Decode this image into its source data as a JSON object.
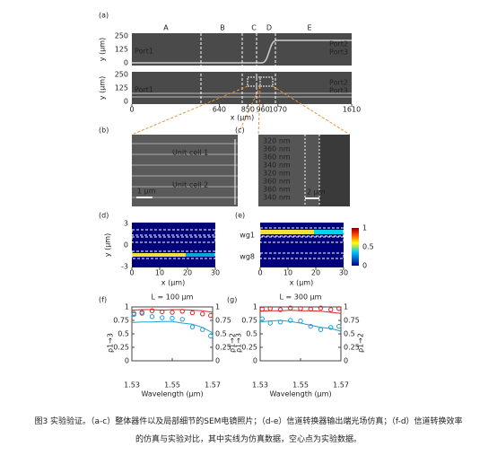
{
  "figure": {
    "a": {
      "label": "(a)",
      "sections": [
        "A",
        "B",
        "C",
        "D",
        "E"
      ],
      "yaxis_label": "y (μm)",
      "yticks": [
        250,
        125,
        0
      ],
      "ports": [
        "Port1",
        "Port2",
        "Port3"
      ],
      "xticks": [
        0,
        640,
        850,
        960,
        1070,
        1610
      ],
      "xlim": [
        0,
        1610
      ],
      "xaxis_label": "x (μm)"
    },
    "b": {
      "label": "(b)",
      "cells": [
        "Unit cell 1",
        "Unit cell 2"
      ],
      "scale": "1 μm"
    },
    "c": {
      "label": "(c)",
      "widths": [
        "320 nm",
        "360 nm",
        "360 nm",
        "340 nm",
        "320 nm",
        "360 nm",
        "360 nm",
        "340 nm"
      ],
      "scale": "2 μm"
    },
    "d": {
      "label": "(d)",
      "yaxis_label": "y (μm)",
      "yticks": [
        3,
        0,
        -3
      ],
      "xticks": [
        0,
        10,
        20,
        30
      ],
      "xlim": [
        0,
        30
      ],
      "xaxis_label": "x (μm)"
    },
    "e": {
      "label": "(e)",
      "waveguides": [
        "wg1",
        "wg8"
      ],
      "xticks": [
        0,
        10,
        20,
        30
      ],
      "xlim": [
        0,
        30
      ],
      "xaxis_label": "x (μm)",
      "colorbar_ticks": [
        1,
        0.5,
        0
      ]
    }
  },
  "chart_data": [
    {
      "type": "line",
      "panel": "(f)",
      "title": "L = 100 μm",
      "xlabel": "Wavelength (μm)",
      "ylabel": "ρ1→3",
      "y2label": "ρ1→2",
      "xlim": [
        1.53,
        1.57
      ],
      "xticks": [
        1.53,
        1.55,
        1.57
      ],
      "ylim": [
        0,
        1
      ],
      "yticks": [
        0,
        0.25,
        0.5,
        0.75,
        1
      ],
      "y2lim": [
        0,
        1
      ],
      "y2ticks": [
        0,
        0.25,
        0.5,
        0.75,
        1
      ],
      "series": [
        {
          "color": "#d62728",
          "style": "line",
          "x": [
            1.53,
            1.535,
            1.54,
            1.545,
            1.55,
            1.555,
            1.56,
            1.565,
            1.57
          ],
          "values": [
            0.94,
            0.95,
            0.95,
            0.94,
            0.95,
            0.95,
            0.94,
            0.93,
            0.9
          ]
        },
        {
          "color": "#1f9fd6",
          "style": "line",
          "axis": "y2",
          "x": [
            1.53,
            1.535,
            1.54,
            1.545,
            1.55,
            1.555,
            1.56,
            1.565,
            1.57
          ],
          "values": [
            0.71,
            0.72,
            0.72,
            0.73,
            0.73,
            0.7,
            0.68,
            0.62,
            0.52
          ]
        },
        {
          "color": "#d62728",
          "style": "marker",
          "x": [
            1.531,
            1.535,
            1.54,
            1.545,
            1.55,
            1.555,
            1.56,
            1.565,
            1.569
          ],
          "values": [
            0.88,
            0.9,
            0.93,
            0.91,
            0.9,
            0.92,
            0.89,
            0.87,
            0.84
          ]
        },
        {
          "color": "#1f9fd6",
          "style": "marker",
          "axis": "y2",
          "x": [
            1.531,
            1.535,
            1.54,
            1.545,
            1.55,
            1.555,
            1.56,
            1.565,
            1.569
          ],
          "values": [
            0.86,
            0.88,
            0.82,
            0.8,
            0.79,
            0.77,
            0.63,
            0.58,
            0.46
          ]
        }
      ]
    },
    {
      "type": "line",
      "panel": "(g)",
      "title": "L = 300 μm",
      "xlabel": "Wavelength (μm)",
      "ylabel": "ρ1→3",
      "y2label": "ρ1→2",
      "xlim": [
        1.53,
        1.57
      ],
      "xticks": [
        1.53,
        1.55,
        1.57
      ],
      "ylim": [
        0,
        1
      ],
      "yticks": [
        0,
        0.25,
        0.5,
        0.75,
        1
      ],
      "y2lim": [
        0,
        1
      ],
      "y2ticks": [
        0,
        0.25,
        0.5,
        0.75,
        1
      ],
      "series": [
        {
          "color": "#d62728",
          "style": "line",
          "x": [
            1.53,
            1.535,
            1.54,
            1.545,
            1.55,
            1.555,
            1.56,
            1.565,
            1.57
          ],
          "values": [
            0.92,
            0.93,
            0.93,
            0.94,
            0.93,
            0.93,
            0.92,
            0.9,
            0.88
          ]
        },
        {
          "color": "#1f9fd6",
          "style": "line",
          "axis": "y2",
          "x": [
            1.53,
            1.535,
            1.54,
            1.545,
            1.55,
            1.555,
            1.56,
            1.565,
            1.57
          ],
          "values": [
            0.72,
            0.74,
            0.75,
            0.73,
            0.7,
            0.66,
            0.62,
            0.6,
            0.55
          ]
        },
        {
          "color": "#d62728",
          "style": "marker",
          "x": [
            1.531,
            1.535,
            1.54,
            1.545,
            1.55,
            1.555,
            1.56,
            1.565,
            1.569
          ],
          "values": [
            0.96,
            0.97,
            0.95,
            0.98,
            0.97,
            0.96,
            0.98,
            0.95,
            0.97
          ]
        },
        {
          "color": "#1f9fd6",
          "style": "marker",
          "axis": "y2",
          "x": [
            1.531,
            1.535,
            1.54,
            1.545,
            1.55,
            1.555,
            1.56,
            1.565,
            1.569
          ],
          "values": [
            0.78,
            0.7,
            0.72,
            0.75,
            0.74,
            0.64,
            0.58,
            0.62,
            0.64
          ]
        }
      ]
    }
  ],
  "caption": [
    "图3 实验验证。（a-c）整体器件以及局部细节的SEM电镜照片；（d-e）信道转换器输出端光场仿真；（f-d）信道转换效率",
    "的仿真与实验对比，其中实线为仿真数据，空心点为实验数据。"
  ]
}
